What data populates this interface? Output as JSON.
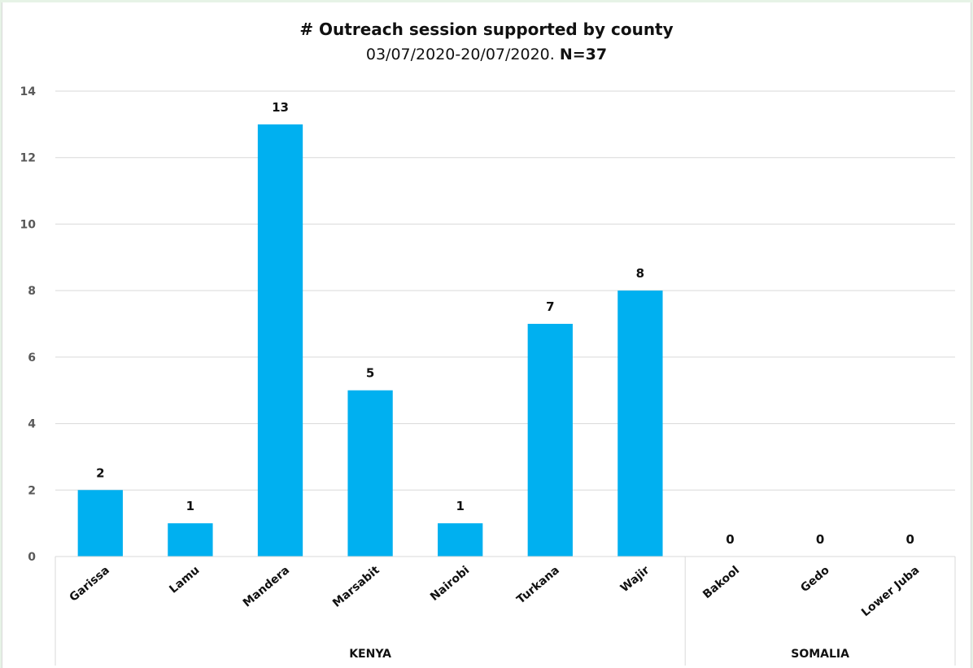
{
  "chart_data": {
    "type": "bar",
    "title": "# Outreach session supported by county",
    "subtitle_text": "03/07/2020-20/07/2020.",
    "subtitle_bold": "N=37",
    "categories": [
      "Garissa",
      "Lamu",
      "Mandera",
      "Marsabit",
      "Nairobi",
      "Turkana",
      "Wajir",
      "Bakool",
      "Gedo",
      "Lower Juba"
    ],
    "values": [
      2,
      1,
      13,
      5,
      1,
      7,
      8,
      0,
      0,
      0
    ],
    "groups": [
      {
        "name": "KENYA",
        "categories": [
          "Garissa",
          "Lamu",
          "Mandera",
          "Marsabit",
          "Nairobi",
          "Turkana",
          "Wajir"
        ]
      },
      {
        "name": "SOMALIA",
        "categories": [
          "Bakool",
          "Gedo",
          "Lower Juba"
        ]
      }
    ],
    "ylim": [
      0,
      14
    ],
    "yticks": [
      0,
      2,
      4,
      6,
      8,
      10,
      12,
      14
    ],
    "xlabel": "",
    "ylabel": "",
    "grid": true,
    "legend": false,
    "data_labels": true
  },
  "colors": {
    "bar": "#00b0f0",
    "grid": "#d9d9d9",
    "text": "#111111",
    "tick_text": "#595959",
    "background": "#e6f3e6"
  }
}
